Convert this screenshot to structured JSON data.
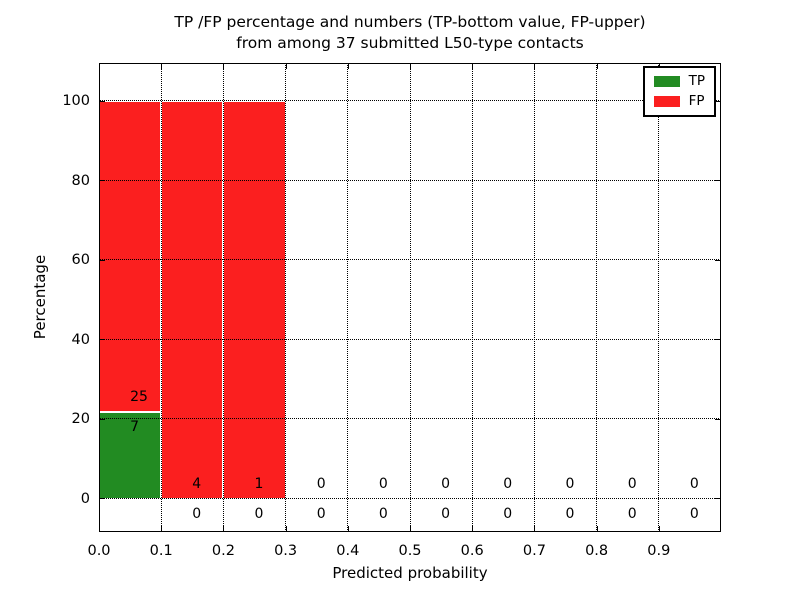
{
  "chart_data": {
    "type": "bar",
    "stacked": true,
    "title_line1": "TP /FP percentage and numbers (TP-bottom value, FP-upper)",
    "title_line2": "from among 37 submitted L50-type contacts",
    "xlabel": "Predicted probability",
    "ylabel": "Percentage",
    "x_tick_labels": [
      "0.0",
      "0.1",
      "0.2",
      "0.3",
      "0.4",
      "0.5",
      "0.6",
      "0.7",
      "0.8",
      "0.9"
    ],
    "y_tick_values": [
      0,
      20,
      40,
      60,
      80,
      100
    ],
    "xlim": [
      0.0,
      1.0
    ],
    "ylim": [
      -8.3,
      109.6
    ],
    "bin_width": 0.1,
    "grid": "dotted",
    "legend": {
      "position": "upper-right",
      "entries": [
        {
          "label": "TP",
          "color": "#228b22"
        },
        {
          "label": "FP",
          "color": "#fb1f1f"
        }
      ]
    },
    "series": [
      {
        "name": "TP",
        "color": "#228b22",
        "percent": [
          21.875,
          0,
          0,
          0,
          0,
          0,
          0,
          0,
          0,
          0
        ],
        "counts": [
          7,
          0,
          0,
          0,
          0,
          0,
          0,
          0,
          0,
          0
        ]
      },
      {
        "name": "FP",
        "color": "#fb1f1f",
        "percent": [
          78.125,
          100,
          100,
          0,
          0,
          0,
          0,
          0,
          0,
          0
        ],
        "counts": [
          25,
          4,
          1,
          0,
          0,
          0,
          0,
          0,
          0,
          0
        ]
      }
    ]
  },
  "colors": {
    "background": "#ffffff",
    "axis": "#000000",
    "grid": "#000000",
    "bar_edge": "#ffffff",
    "text": "#000000"
  }
}
